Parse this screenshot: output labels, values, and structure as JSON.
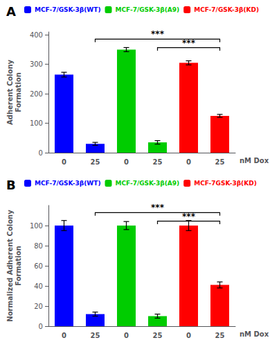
{
  "chart_data": [
    {
      "type": "bar",
      "title": "A",
      "ylabel": "Adherent Colony\nFormation",
      "xlabel": "nM Dox",
      "categories": [
        "0",
        "25",
        "0",
        "25",
        "0",
        "25"
      ],
      "series": [
        {
          "name": "MCF-7/GSK-3β(WT)",
          "color": "#0000FF",
          "values": [
            265,
            30,
            null,
            null,
            null,
            null
          ],
          "errors": [
            8,
            5,
            null,
            null,
            null,
            null
          ]
        },
        {
          "name": "MCF-7/GSK-3β(A9)",
          "color": "#00CC00",
          "values": [
            null,
            null,
            350,
            35,
            null,
            null
          ],
          "errors": [
            null,
            null,
            7,
            6,
            null,
            null
          ]
        },
        {
          "name": "MCF-7/GSK-3β(KD)",
          "color": "#FF0000",
          "values": [
            null,
            null,
            null,
            null,
            305,
            125
          ],
          "errors": [
            null,
            null,
            null,
            null,
            7,
            5
          ]
        }
      ],
      "ylim": [
        0,
        410
      ],
      "yticks": [
        0,
        100,
        200,
        300,
        400
      ],
      "annotations": [
        {
          "text": "***",
          "from": 1,
          "to": 5
        },
        {
          "text": "***",
          "from": 3,
          "to": 5
        }
      ],
      "legend": "upper right",
      "grid": false
    },
    {
      "type": "bar",
      "title": "B",
      "ylabel": "Normalized Adherent Colony\nFormation",
      "xlabel": "nM Dox",
      "categories": [
        "0",
        "25",
        "0",
        "25",
        "0",
        "25"
      ],
      "series": [
        {
          "name": "MCF-7/GSK-3β(WT)",
          "color": "#0000FF",
          "values": [
            100,
            12,
            null,
            null,
            null,
            null
          ],
          "errors": [
            5,
            2,
            null,
            null,
            null,
            null
          ]
        },
        {
          "name": "MCF-7/GSK-3β(A9)",
          "color": "#00CC00",
          "values": [
            null,
            null,
            100,
            10,
            null,
            null
          ],
          "errors": [
            null,
            null,
            4,
            2,
            null,
            null
          ]
        },
        {
          "name": "MCF-7GSK-3β(KD)",
          "color": "#FF0000",
          "values": [
            null,
            null,
            null,
            null,
            100,
            41
          ],
          "errors": [
            null,
            null,
            null,
            null,
            5,
            3
          ]
        }
      ],
      "ylim": [
        0,
        120
      ],
      "yticks": [
        0,
        20,
        40,
        60,
        80,
        100
      ],
      "annotations": [
        {
          "text": "***",
          "from": 1,
          "to": 5
        },
        {
          "text": "***",
          "from": 3,
          "to": 5
        }
      ],
      "legend": "upper right",
      "grid": false
    }
  ]
}
